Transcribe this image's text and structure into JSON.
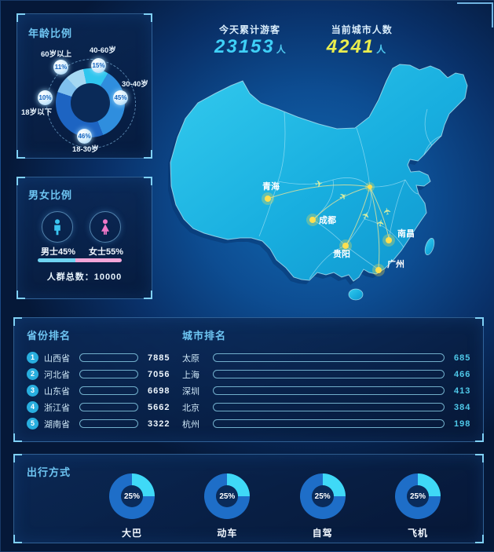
{
  "page": {
    "accent": "#37c9f2",
    "stats": [
      {
        "label": "今天累计游客",
        "value": "23153",
        "unit": "人",
        "color": "#3fd0f7"
      },
      {
        "label": "当前城市人数",
        "value": "4241",
        "unit": "人",
        "color": "#e9ed4e"
      }
    ]
  },
  "age_panel": {
    "title": "年龄比例",
    "segments": [
      {
        "label": "60岁以上",
        "pct": "11%",
        "value": 11,
        "color": "#a5d8f2"
      },
      {
        "label": "40-60岁",
        "pct": "15%",
        "value": 15,
        "color": "#2fc6ee"
      },
      {
        "label": "30-40岁",
        "pct": "45%",
        "value": 45,
        "color": "#2f8ede"
      },
      {
        "label": "18-30岁",
        "pct": "46%",
        "value": 46,
        "color": "#1d64c2"
      },
      {
        "label": "18岁以下",
        "pct": "10%",
        "value": 10,
        "color": "#7fc0ee"
      }
    ]
  },
  "gender_panel": {
    "title": "男女比例",
    "male": {
      "label": "男士45%",
      "pct": 45,
      "color": "#3ac4f0"
    },
    "female": {
      "label": "女士55%",
      "pct": 55,
      "color": "#f078c8"
    },
    "total": "人群总数：10000"
  },
  "map": {
    "cities": [
      "青海",
      "成都",
      "南昌",
      "贵阳",
      "广州"
    ]
  },
  "province_panel": {
    "title": "省份排名",
    "max": 8300,
    "rows": [
      {
        "rank": "1",
        "name": "山西省",
        "value": "7885"
      },
      {
        "rank": "2",
        "name": "河北省",
        "value": "7056"
      },
      {
        "rank": "3",
        "name": "山东省",
        "value": "6698"
      },
      {
        "rank": "4",
        "name": "浙江省",
        "value": "5662"
      },
      {
        "rank": "5",
        "name": "湖南省",
        "value": "3322"
      }
    ]
  },
  "city_panel": {
    "title": "城市排名",
    "max": 740,
    "rows": [
      {
        "name": "太原",
        "value": "685"
      },
      {
        "name": "上海",
        "value": "466"
      },
      {
        "name": "深圳",
        "value": "413"
      },
      {
        "name": "北京",
        "value": "384"
      },
      {
        "name": "杭州",
        "value": "198"
      }
    ]
  },
  "travel_panel": {
    "title": "出行方式",
    "donut_on": "#3fd9f7",
    "donut_off": "#1e6ec8",
    "items": [
      {
        "label": "大巴",
        "pct": "25%"
      },
      {
        "label": "动车",
        "pct": "25%"
      },
      {
        "label": "自驾",
        "pct": "25%"
      },
      {
        "label": "飞机",
        "pct": "25%"
      }
    ]
  },
  "chart_data": [
    {
      "type": "pie",
      "title": "年龄比例",
      "labels": [
        "60岁以上",
        "40-60岁",
        "30-40岁",
        "18-30岁",
        "18岁以下"
      ],
      "values": [
        11,
        15,
        45,
        46,
        10
      ],
      "unit": "%",
      "legend_position": "around-donut"
    },
    {
      "type": "pie",
      "title": "男女比例",
      "labels": [
        "男士",
        "女士"
      ],
      "values": [
        45,
        55
      ],
      "unit": "%",
      "annotation": "人群总数：10000"
    },
    {
      "type": "bar",
      "title": "省份排名",
      "categories": [
        "山西省",
        "河北省",
        "山东省",
        "浙江省",
        "湖南省"
      ],
      "values": [
        7885,
        7056,
        6698,
        5662,
        3322
      ],
      "xlabel": "",
      "ylabel": "",
      "orientation": "horizontal"
    },
    {
      "type": "bar",
      "title": "城市排名",
      "categories": [
        "太原",
        "上海",
        "深圳",
        "北京",
        "杭州"
      ],
      "values": [
        685,
        466,
        413,
        384,
        198
      ],
      "xlabel": "",
      "ylabel": "",
      "orientation": "horizontal"
    },
    {
      "type": "pie",
      "title": "出行方式",
      "categories": [
        "大巴",
        "动车",
        "自驾",
        "飞机"
      ],
      "values": [
        25,
        25,
        25,
        25
      ],
      "unit": "%",
      "note": "four separate 25% donuts"
    },
    {
      "type": "table",
      "title": "顶部统计",
      "categories": [
        "今天累计游客",
        "当前城市人数"
      ],
      "values": [
        23153,
        4241
      ],
      "unit": "人"
    }
  ]
}
